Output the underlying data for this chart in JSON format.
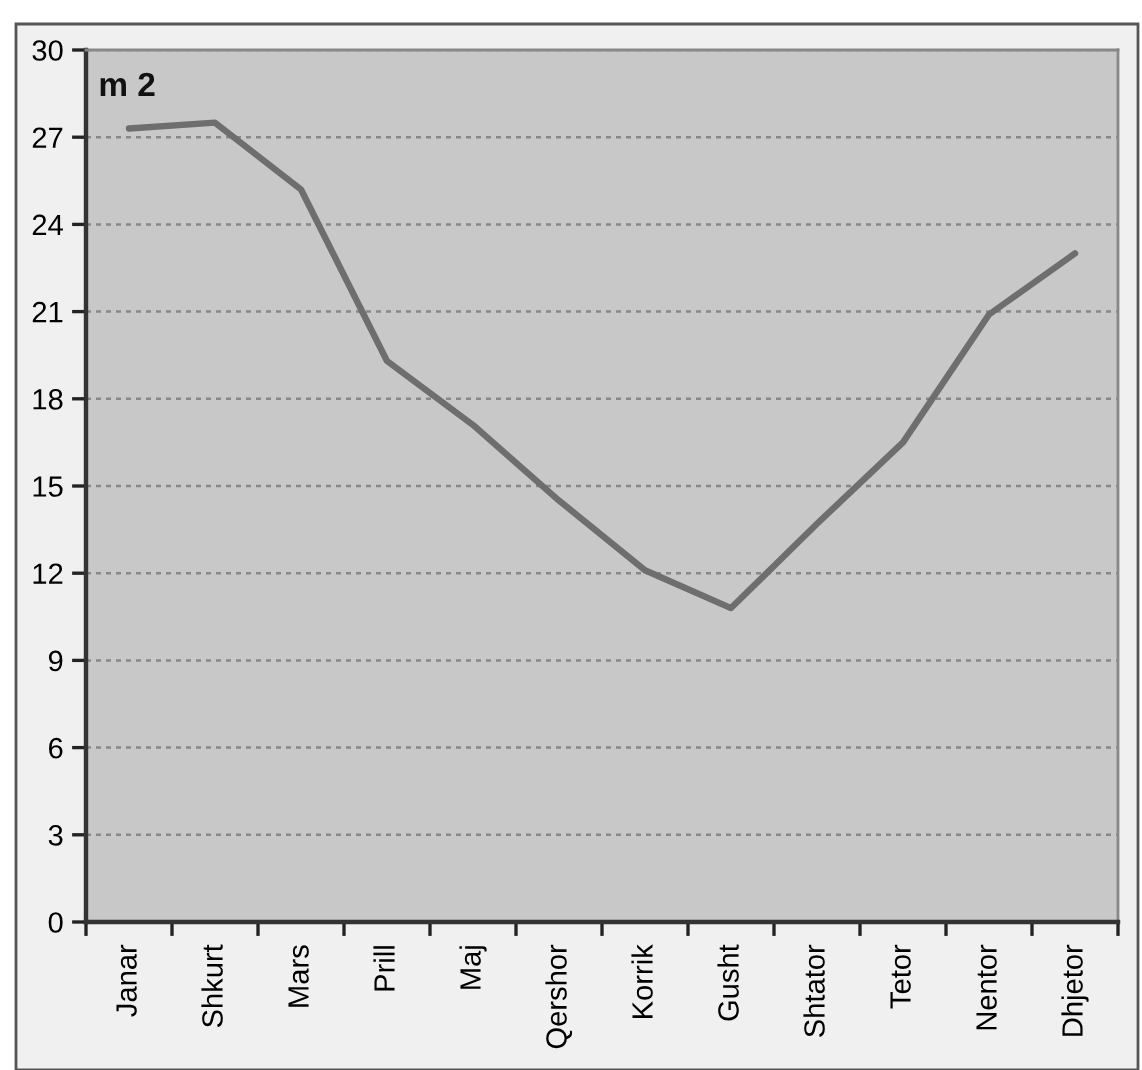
{
  "chart_data": {
    "type": "line",
    "ylabel": "m 2",
    "categories": [
      "Janar",
      "Shkurt",
      "Mars",
      "Prill",
      "Maj",
      "Qershor",
      "Korrik",
      "Gusht",
      "Shtator",
      "Tetor",
      "Nentor",
      "Dhjetor"
    ],
    "series": [
      {
        "color": "#6e6e6e",
        "values": [
          27.3,
          27.5,
          25.2,
          19.3,
          17.1,
          14.5,
          12.1,
          10.8,
          13.7,
          16.5,
          20.9,
          23.0
        ]
      }
    ],
    "ylim": [
      0,
      30
    ],
    "yticks": [
      0,
      3,
      6,
      9,
      12,
      15,
      18,
      21,
      24,
      27,
      30
    ],
    "grid": "y",
    "line_style": "solid"
  }
}
